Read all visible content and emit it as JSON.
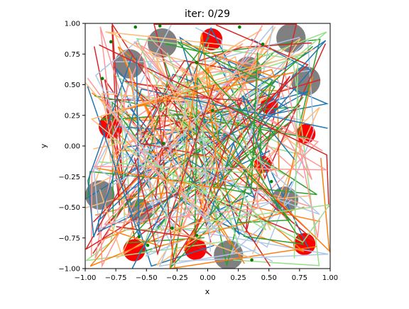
{
  "chart_data": {
    "type": "scatter",
    "title": "iter: 0/29",
    "xlabel": "x",
    "ylabel": "y",
    "xlim": [
      -1.0,
      1.0
    ],
    "ylim": [
      -1.0,
      1.0
    ],
    "xticks": [
      "−1.00",
      "−0.75",
      "−0.50",
      "−0.25",
      "0.00",
      "0.25",
      "0.50",
      "0.75",
      "1.00"
    ],
    "yticks": [
      "−1.00",
      "−0.75",
      "−0.50",
      "−0.25",
      "0.00",
      "0.25",
      "0.50",
      "0.75",
      "1.00"
    ],
    "grid": false,
    "obstacles": [
      {
        "x": -0.37,
        "y": 0.84,
        "r": 0.12,
        "color": "#808080"
      },
      {
        "x": 0.68,
        "y": 0.88,
        "r": 0.12,
        "color": "#808080"
      },
      {
        "x": -0.64,
        "y": 0.67,
        "r": 0.12,
        "color": "#808080"
      },
      {
        "x": 0.8,
        "y": 0.53,
        "r": 0.12,
        "color": "#808080"
      },
      {
        "x": 0.33,
        "y": 0.62,
        "r": 0.11,
        "color": "#808080"
      },
      {
        "x": -0.88,
        "y": -0.4,
        "r": 0.12,
        "color": "#808080"
      },
      {
        "x": 0.63,
        "y": -0.44,
        "r": 0.11,
        "color": "#808080"
      },
      {
        "x": 0.17,
        "y": -0.89,
        "r": 0.12,
        "color": "#808080"
      },
      {
        "x": -0.55,
        "y": -0.53,
        "r": 0.1,
        "color": "#808080"
      },
      {
        "x": 0.03,
        "y": 0.87,
        "r": 0.09,
        "color": "#ff0000"
      },
      {
        "x": -0.79,
        "y": 0.16,
        "r": 0.1,
        "color": "#ff0000"
      },
      {
        "x": 0.8,
        "y": 0.1,
        "r": 0.08,
        "color": "#ff0000"
      },
      {
        "x": 0.5,
        "y": 0.33,
        "r": 0.07,
        "color": "#ff0000"
      },
      {
        "x": -0.6,
        "y": -0.85,
        "r": 0.09,
        "color": "#ff0000"
      },
      {
        "x": 0.79,
        "y": -0.8,
        "r": 0.09,
        "color": "#ff0000"
      },
      {
        "x": -0.1,
        "y": -0.84,
        "r": 0.09,
        "color": "#ff0000"
      },
      {
        "x": 0.45,
        "y": -0.15,
        "r": 0.07,
        "color": "#ff0000"
      }
    ],
    "start_points": [
      {
        "x": -0.59,
        "y": 0.97
      },
      {
        "x": -0.39,
        "y": 0.98
      },
      {
        "x": 0.26,
        "y": 0.97
      },
      {
        "x": -0.79,
        "y": 0.85
      },
      {
        "x": 0.45,
        "y": 0.83
      },
      {
        "x": -0.86,
        "y": 0.55
      },
      {
        "x": -0.09,
        "y": 0.68
      },
      {
        "x": -0.36,
        "y": 0.02
      },
      {
        "x": -0.29,
        "y": -0.67
      },
      {
        "x": -0.09,
        "y": -0.73
      },
      {
        "x": -0.49,
        "y": -0.81
      },
      {
        "x": -0.56,
        "y": -0.74
      },
      {
        "x": 0.52,
        "y": -0.29
      },
      {
        "x": 0.04,
        "y": 0.29
      },
      {
        "x": 0.36,
        "y": -0.93
      }
    ],
    "path_colors": [
      "#1f77b4",
      "#aec7e8",
      "#ff7f0e",
      "#ffbb78",
      "#2ca02c",
      "#98df8a",
      "#d62728",
      "#ff9896"
    ],
    "path_count": 120,
    "path_seed": 7
  }
}
